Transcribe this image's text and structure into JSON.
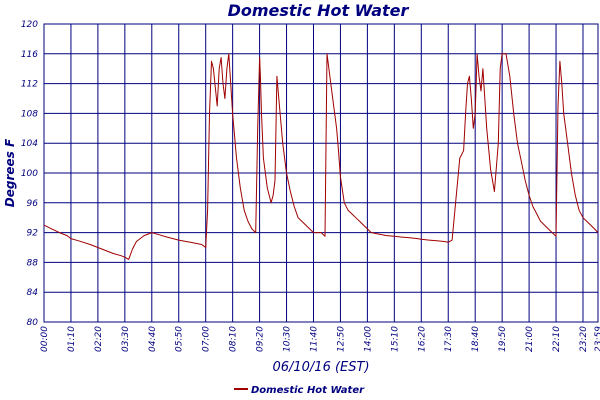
{
  "chart_data": {
    "type": "line",
    "title": "Domestic Hot Water",
    "xlabel": "06/10/16 (EST)",
    "ylabel": "Degrees F",
    "ylim": [
      80,
      120
    ],
    "yticks": [
      "80",
      "84",
      "88",
      "92",
      "96",
      "100",
      "104",
      "108",
      "112",
      "116",
      "120"
    ],
    "xlim": [
      "00:00",
      "23:59"
    ],
    "xticks": [
      "00:00",
      "01:10",
      "02:20",
      "03:30",
      "04:40",
      "05:50",
      "07:00",
      "08:10",
      "09:20",
      "10:30",
      "11:40",
      "12:50",
      "14:00",
      "15:10",
      "16:20",
      "17:30",
      "18:40",
      "19:50",
      "21:00",
      "22:10",
      "23:20",
      "23:59"
    ],
    "grid": true,
    "legend": "bottom-center",
    "colors": {
      "series": "#a00000",
      "grid": "#00007f",
      "text": "#00007f"
    },
    "series": [
      {
        "name": "Domestic Hot Water",
        "x": [
          "00:00",
          "00:20",
          "00:40",
          "01:00",
          "01:10",
          "01:30",
          "02:00",
          "02:20",
          "02:40",
          "03:00",
          "03:20",
          "03:30",
          "03:40",
          "03:50",
          "04:00",
          "04:20",
          "04:40",
          "05:00",
          "05:20",
          "05:50",
          "06:20",
          "06:50",
          "06:55",
          "07:00",
          "07:05",
          "07:10",
          "07:15",
          "07:20",
          "07:25",
          "07:30",
          "07:35",
          "07:40",
          "07:45",
          "07:50",
          "07:55",
          "08:00",
          "08:05",
          "08:10",
          "08:20",
          "08:30",
          "08:40",
          "08:50",
          "09:00",
          "09:10",
          "09:15",
          "09:20",
          "09:22",
          "09:25",
          "09:30",
          "09:40",
          "09:50",
          "09:55",
          "10:00",
          "10:05",
          "10:10",
          "10:20",
          "10:30",
          "10:40",
          "10:50",
          "11:00",
          "11:10",
          "11:20",
          "11:30",
          "11:40",
          "11:50",
          "12:00",
          "12:10",
          "12:15",
          "12:20",
          "12:30",
          "12:40",
          "12:45",
          "12:50",
          "13:00",
          "13:10",
          "13:20",
          "13:30",
          "13:40",
          "13:50",
          "14:00",
          "14:10",
          "14:30",
          "14:50",
          "15:10",
          "15:30",
          "15:50",
          "16:10",
          "16:20",
          "16:40",
          "17:00",
          "17:20",
          "17:30",
          "17:40",
          "18:00",
          "18:10",
          "18:15",
          "18:20",
          "18:25",
          "18:30",
          "18:35",
          "18:40",
          "18:45",
          "18:50",
          "18:55",
          "19:00",
          "19:05",
          "19:10",
          "19:20",
          "19:30",
          "19:40",
          "19:45",
          "19:50",
          "20:00",
          "20:10",
          "20:20",
          "20:30",
          "20:40",
          "20:50",
          "21:00",
          "21:10",
          "21:20",
          "21:30",
          "21:40",
          "21:50",
          "22:00",
          "22:10",
          "22:15",
          "22:20",
          "22:25",
          "22:30",
          "22:40",
          "22:50",
          "23:00",
          "23:10",
          "23:20",
          "23:30",
          "23:40",
          "23:50",
          "23:59"
        ],
        "values": [
          93,
          92.5,
          92,
          91.6,
          91.2,
          90.9,
          90.4,
          90,
          89.6,
          89.2,
          88.9,
          88.7,
          88.4,
          89.8,
          90.8,
          91.6,
          92,
          91.7,
          91.4,
          91,
          90.7,
          90.4,
          90.2,
          90,
          95,
          108,
          115,
          114,
          111.5,
          109,
          114,
          115.5,
          112,
          110,
          114,
          116,
          112,
          108,
          102,
          98,
          95,
          93.5,
          92.5,
          92,
          106,
          115.5,
          113,
          108,
          102,
          98,
          96,
          97,
          99,
          113,
          110,
          104,
          100,
          97.5,
          95.5,
          94,
          93.5,
          93,
          92.5,
          92,
          92,
          92,
          91.5,
          116,
          114,
          110,
          106,
          103,
          99.5,
          96,
          95,
          94.5,
          94,
          93.5,
          93,
          92.5,
          92,
          91.8,
          91.6,
          91.5,
          91.4,
          91.3,
          91.2,
          91.1,
          91,
          90.9,
          90.8,
          90.7,
          91,
          102,
          103,
          108,
          112,
          113,
          110,
          106,
          108,
          116,
          113,
          111,
          114,
          110,
          106,
          100.5,
          97.5,
          104,
          114,
          116,
          116,
          113,
          108,
          104,
          101.5,
          99,
          97,
          95.5,
          94.5,
          93.5,
          93,
          92.5,
          92,
          91.5,
          109,
          115,
          112,
          108,
          104,
          100,
          97,
          95,
          94,
          93.5,
          93,
          92.5,
          92
        ]
      }
    ]
  }
}
